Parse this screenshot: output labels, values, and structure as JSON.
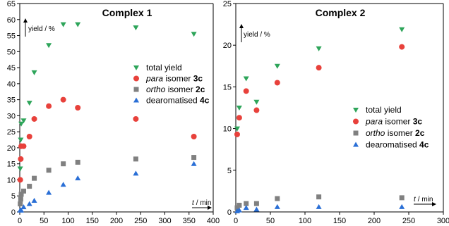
{
  "chart_data": [
    {
      "type": "scatter",
      "title": "Complex 1",
      "xlabel_var": "t",
      "xlabel_unit": "/ min",
      "ylabel": "yield / %",
      "xlim": [
        0,
        400
      ],
      "ylim": [
        0,
        65
      ],
      "xticks": [
        0,
        50,
        100,
        150,
        200,
        250,
        300,
        350,
        400
      ],
      "yticks": [
        0,
        5,
        10,
        15,
        20,
        25,
        30,
        35,
        40,
        45,
        50,
        55,
        60,
        65
      ],
      "legend_position": "center-right",
      "series": [
        {
          "name": "total yield",
          "marker": "triangle-down",
          "color": "#2ea55a",
          "points": [
            [
              1,
              13.5
            ],
            [
              2,
              22.5
            ],
            [
              3,
              27.5
            ],
            [
              8,
              28.5
            ],
            [
              20,
              34
            ],
            [
              30,
              43.5
            ],
            [
              60,
              52
            ],
            [
              90,
              58.5
            ],
            [
              120,
              58.5
            ],
            [
              240,
              57.5
            ],
            [
              360,
              55.5
            ]
          ]
        },
        {
          "name_pre": "",
          "name_it": "para",
          "name_mid": " isomer ",
          "name_bold": "3c",
          "marker": "circle",
          "color": "#e8413b",
          "points": [
            [
              1,
              10
            ],
            [
              2,
              16.5
            ],
            [
              3,
              20.5
            ],
            [
              8,
              20.5
            ],
            [
              20,
              23.5
            ],
            [
              30,
              29
            ],
            [
              60,
              33
            ],
            [
              90,
              35
            ],
            [
              120,
              32.5
            ],
            [
              240,
              29
            ],
            [
              360,
              23.5
            ]
          ]
        },
        {
          "name_pre": "",
          "name_it": "ortho",
          "name_mid": " isomer ",
          "name_bold": "2c",
          "marker": "square",
          "color": "#808080",
          "points": [
            [
              1,
              2.5
            ],
            [
              2,
              4
            ],
            [
              3,
              5.5
            ],
            [
              8,
              6.5
            ],
            [
              20,
              8
            ],
            [
              30,
              10.5
            ],
            [
              60,
              13
            ],
            [
              90,
              15
            ],
            [
              120,
              15.5
            ],
            [
              240,
              16.5
            ],
            [
              360,
              17
            ]
          ]
        },
        {
          "name_pre": "dearomatised ",
          "name_it": "",
          "name_mid": "",
          "name_bold": "4c",
          "marker": "triangle-up",
          "color": "#2a6fd6",
          "points": [
            [
              1,
              0.5
            ],
            [
              2,
              0.5
            ],
            [
              3,
              0.5
            ],
            [
              8,
              1.5
            ],
            [
              20,
              2.5
            ],
            [
              30,
              3.5
            ],
            [
              60,
              6
            ],
            [
              90,
              8.5
            ],
            [
              120,
              10.5
            ],
            [
              240,
              12
            ],
            [
              360,
              15
            ]
          ]
        }
      ]
    },
    {
      "type": "scatter",
      "title": "Complex 2",
      "xlabel_var": "t",
      "xlabel_unit": "/ min",
      "ylabel": "yield / %",
      "xlim": [
        0,
        300
      ],
      "ylim": [
        0,
        25
      ],
      "xticks": [
        0,
        50,
        100,
        150,
        200,
        250,
        300
      ],
      "yticks": [
        0,
        5,
        10,
        15,
        20,
        25
      ],
      "legend_position": "bottom-right",
      "series": [
        {
          "name": "total yield",
          "marker": "triangle-down",
          "color": "#2ea55a",
          "points": [
            [
              2,
              10
            ],
            [
              5,
              12.5
            ],
            [
              15,
              16
            ],
            [
              30,
              13.2
            ],
            [
              60,
              17.5
            ],
            [
              120,
              19.6
            ],
            [
              240,
              21.9
            ]
          ]
        },
        {
          "name_pre": "",
          "name_it": "para",
          "name_mid": " isomer ",
          "name_bold": "3c",
          "marker": "circle",
          "color": "#e8413b",
          "points": [
            [
              2,
              9.3
            ],
            [
              5,
              11.3
            ],
            [
              15,
              14.5
            ],
            [
              30,
              12.2
            ],
            [
              60,
              15.5
            ],
            [
              120,
              17.3
            ],
            [
              240,
              19.8
            ]
          ]
        },
        {
          "name_pre": "",
          "name_it": "ortho",
          "name_mid": " isomer ",
          "name_bold": "2c",
          "marker": "square",
          "color": "#808080",
          "points": [
            [
              2,
              0.5
            ],
            [
              5,
              0.8
            ],
            [
              15,
              1
            ],
            [
              30,
              1
            ],
            [
              60,
              1.6
            ],
            [
              120,
              1.8
            ],
            [
              240,
              1.7
            ]
          ]
        },
        {
          "name_pre": "dearomatised ",
          "name_it": "",
          "name_mid": "",
          "name_bold": "4c",
          "marker": "triangle-up",
          "color": "#2a6fd6",
          "points": [
            [
              2,
              0.1
            ],
            [
              5,
              0.2
            ],
            [
              15,
              0.5
            ],
            [
              30,
              0.3
            ],
            [
              60,
              0.6
            ],
            [
              120,
              0.6
            ],
            [
              240,
              0.6
            ]
          ]
        }
      ]
    }
  ]
}
